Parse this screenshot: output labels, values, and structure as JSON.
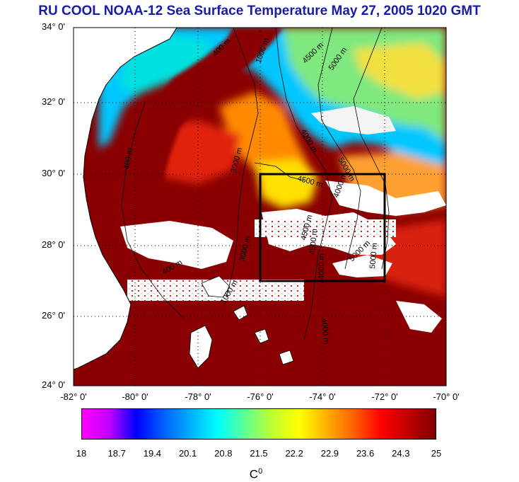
{
  "title": "RU COOL  NOAA-12 Sea Surface Temperature May 27, 2005 1020 GMT",
  "map": {
    "lat_labels": [
      "34° 0'",
      "32° 0'",
      "30° 0'",
      "28° 0'",
      "26° 0'",
      "24° 0'"
    ],
    "lon_labels": [
      "-82° 0'",
      "-80° 0'",
      "-78° 0'",
      "-76° 0'",
      "-74° 0'",
      "-72° 0'",
      "-70° 0'"
    ],
    "lat_range": [
      24,
      34
    ],
    "lon_range": [
      -82,
      -70
    ],
    "grid": "dotted",
    "study_box": {
      "lon": [
        -76,
        -72
      ],
      "lat": [
        27,
        30
      ]
    },
    "contour_labels": [
      "400 m",
      "1000 m",
      "4500 m",
      "5000 m",
      "4000 m",
      "3000 m",
      "4500 m",
      "5000 m",
      "4000 m",
      "4500 m",
      "5000 m",
      "4000 m",
      "3000 m",
      "1000 m",
      "400 m",
      "400 m",
      "4000 m",
      "4500 m",
      "5000 m"
    ],
    "colors": {
      "land": "#ffffff",
      "cloud": "#ffffff",
      "warm_water": "#8a0000",
      "hot": "#d41010",
      "orange": "#ff8a00",
      "yellow": "#ffee00",
      "green": "#9be65a",
      "cyan": "#00e6e6",
      "blue_cyan": "#00b0ff"
    }
  },
  "colorbar": {
    "ticks": [
      "18",
      "18.7",
      "19.4",
      "20.1",
      "20.8",
      "21.5",
      "22.2",
      "22.9",
      "23.6",
      "24.3",
      "25"
    ],
    "unit": "C",
    "unit_sup": "0",
    "range": [
      18,
      25
    ],
    "colors": [
      "#ff00ff",
      "#c000ff",
      "#0000ff",
      "#0060ff",
      "#00b0ff",
      "#00ffff",
      "#60ff90",
      "#c0ff30",
      "#ffff00",
      "#ffb000",
      "#ff6000",
      "#ff0000",
      "#c00000",
      "#800000"
    ]
  }
}
